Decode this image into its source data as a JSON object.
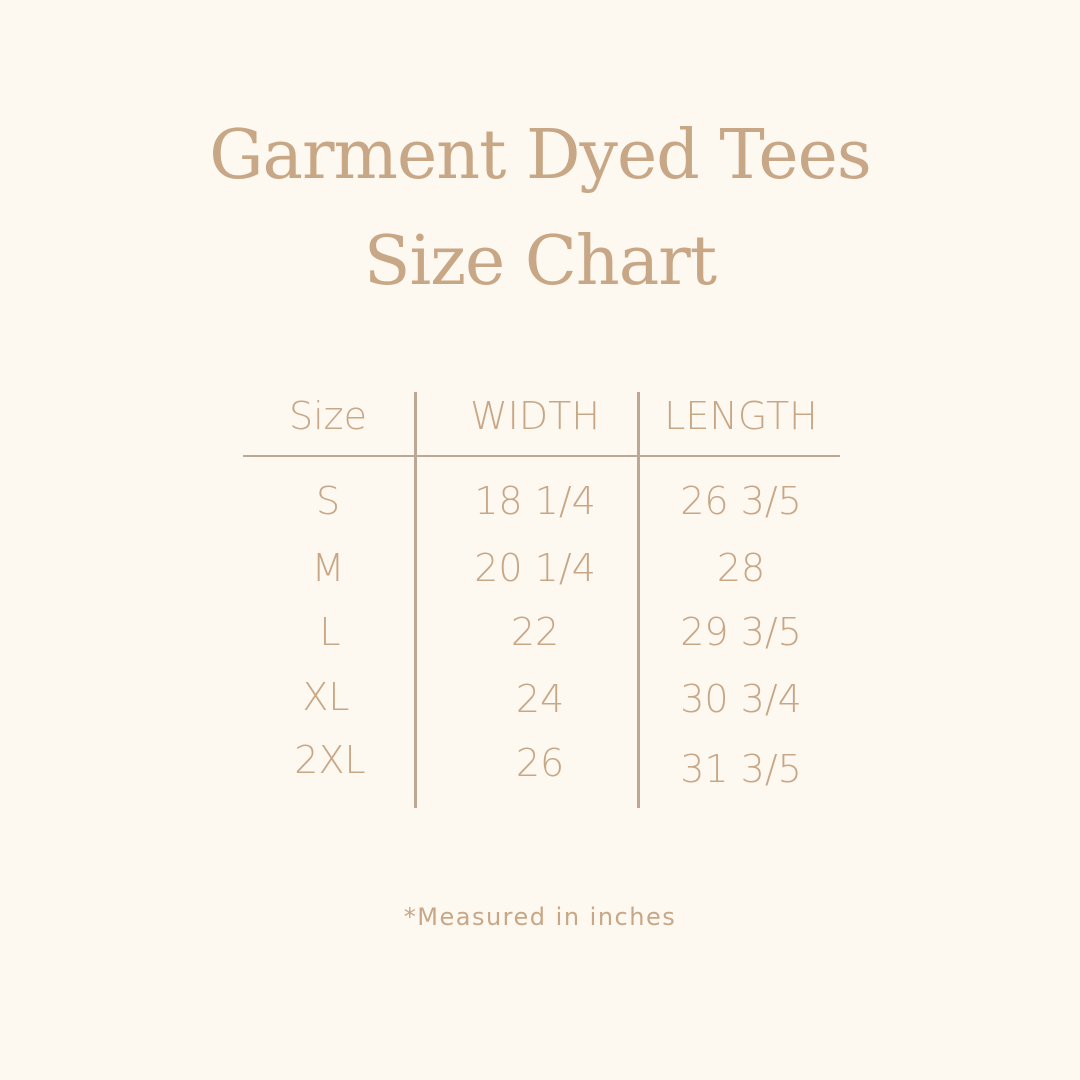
{
  "title": {
    "line1": "Garment Dyed Tees",
    "line2": "Size Chart"
  },
  "table": {
    "headers": [
      "Size",
      "WIDTH",
      "LENGTH"
    ],
    "rows": [
      [
        "S",
        "18 1/4",
        "26 3/5"
      ],
      [
        "M",
        "20 1/4",
        "28"
      ],
      [
        "L",
        "22",
        "29 3/5"
      ],
      [
        "XL",
        "24",
        "30 3/4"
      ],
      [
        "2XL",
        "26",
        "31 3/5"
      ]
    ]
  },
  "footnote": "*Measured in inches",
  "colors": {
    "background": "#fdf8f0",
    "text": "#c8a786",
    "lines": "#bca893"
  }
}
